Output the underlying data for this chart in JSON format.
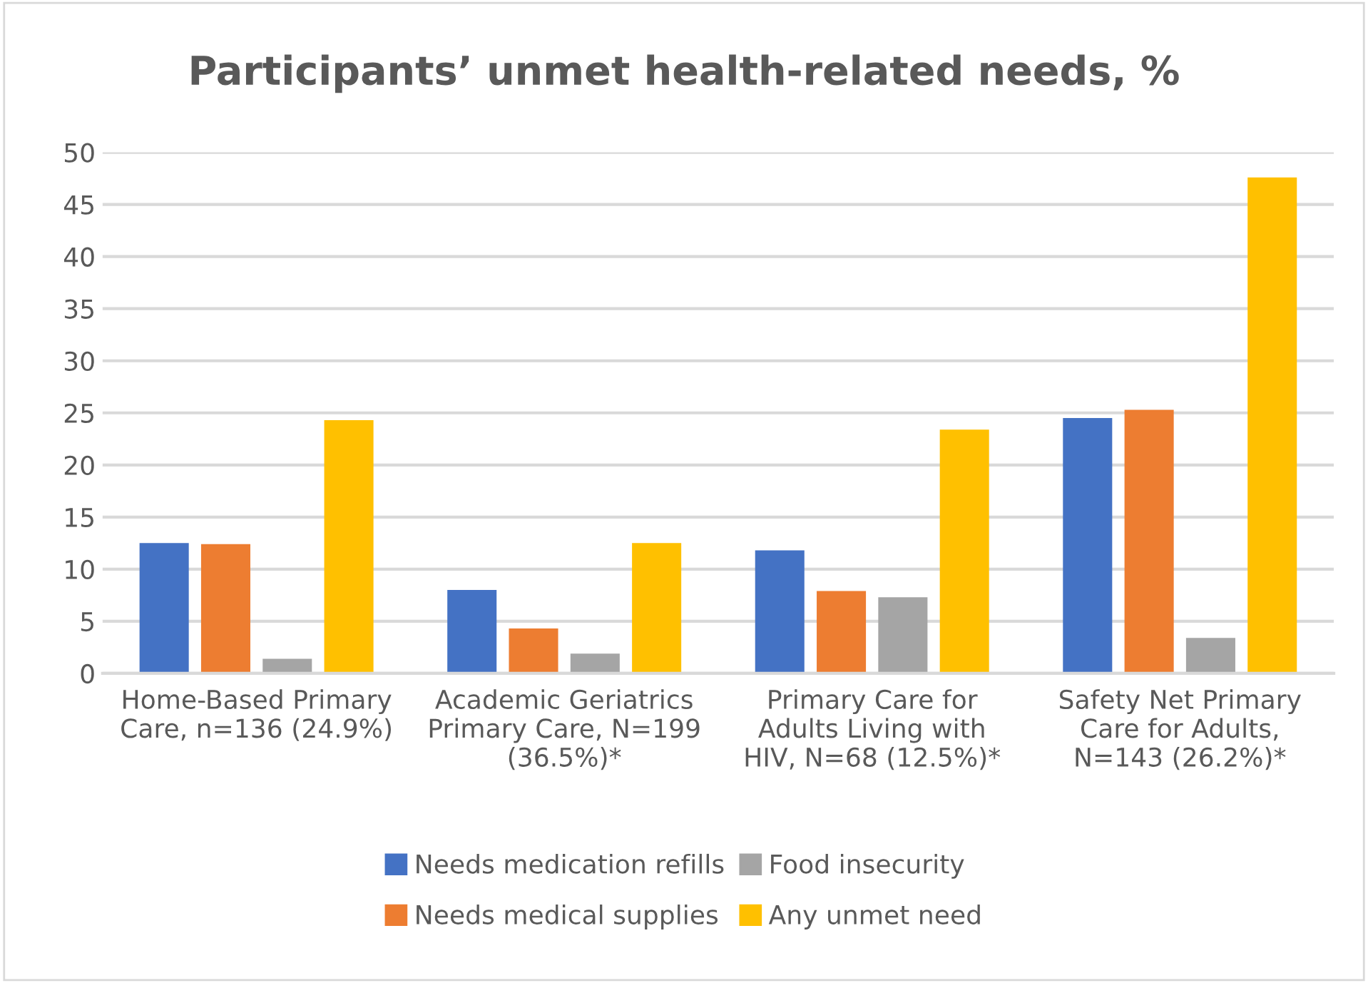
{
  "chart_data": {
    "type": "bar",
    "title": "Participants’ unmet health-related needs, %",
    "categories": [
      "Home-Based Primary\nCare, n=136 (24.9%)",
      "Academic Geriatrics\nPrimary Care, N=199\n(36.5%)*",
      "Primary Care for\nAdults Living with\nHIV, N=68 (12.5%)*",
      "Safety Net Primary\nCare for Adults,\nN=143 (26.2%)*"
    ],
    "series": [
      {
        "name": "Needs medication refills",
        "color": "#4472c4",
        "values": [
          12.5,
          8.0,
          11.8,
          24.5
        ]
      },
      {
        "name": "Needs medical supplies",
        "color": "#ed7d31",
        "values": [
          12.4,
          4.3,
          7.9,
          25.3
        ]
      },
      {
        "name": "Food insecurity",
        "color": "#a5a5a5",
        "values": [
          1.4,
          1.9,
          7.3,
          3.4
        ]
      },
      {
        "name": "Any unmet need",
        "color": "#ffc000",
        "values": [
          24.3,
          12.5,
          23.4,
          47.6
        ]
      }
    ],
    "ylim": [
      0,
      50
    ],
    "yticks": [
      0,
      5,
      10,
      15,
      20,
      25,
      30,
      35,
      40,
      45,
      50
    ],
    "grid": "y",
    "legend": "bottom"
  }
}
